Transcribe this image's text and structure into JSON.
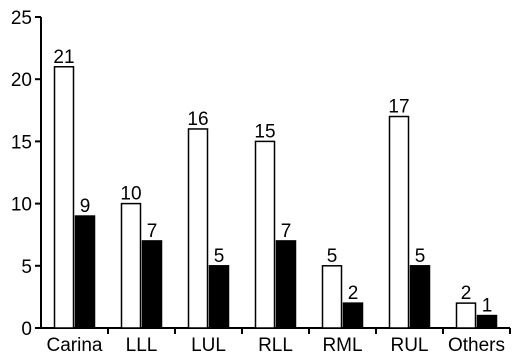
{
  "chart_data": {
    "type": "bar",
    "categories": [
      "Carina",
      "LLL",
      "LUL",
      "RLL",
      "RML",
      "RUL",
      "Others"
    ],
    "series": [
      {
        "fill": "#ffffff",
        "values": [
          21,
          10,
          16,
          15,
          5,
          17,
          2
        ]
      },
      {
        "fill": "#000000",
        "values": [
          9,
          7,
          5,
          7,
          2,
          5,
          1
        ]
      }
    ],
    "ylim": [
      0,
      25
    ],
    "yticks": [
      "0",
      "5",
      "10",
      "15",
      "20",
      "25"
    ],
    "data_labels": [
      [
        "21",
        "10",
        "16",
        "15",
        "5",
        "17",
        "2"
      ],
      [
        "9",
        "7",
        "5",
        "7",
        "2",
        "5",
        "1"
      ]
    ],
    "grid": false,
    "legend": "none"
  }
}
